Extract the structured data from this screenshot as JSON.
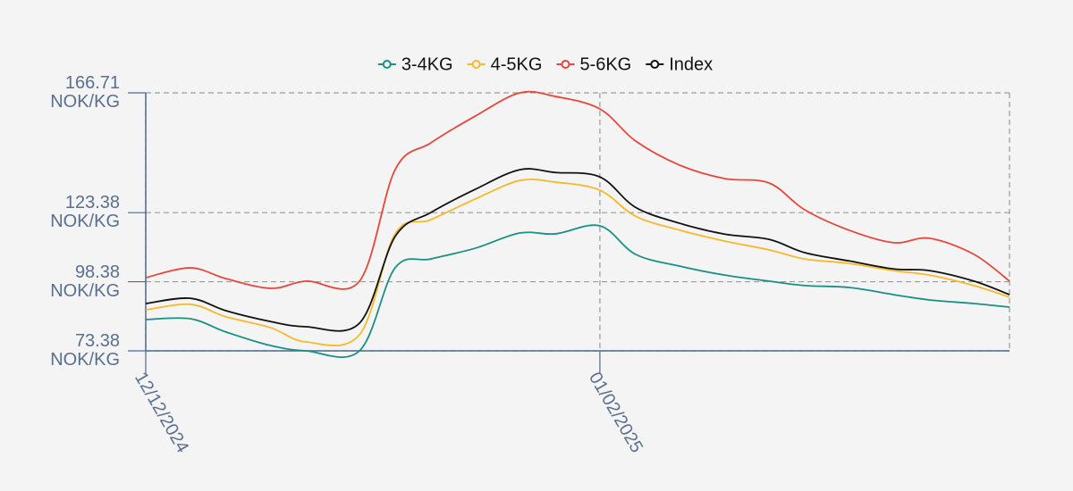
{
  "chart_data": {
    "type": "line",
    "x": [
      "12/12/2024",
      "17/12/2024",
      "21/12/2024",
      "26/12/2024",
      "30/12/2024",
      "05/01/2025",
      "09/01/2025",
      "13/01/2025",
      "18/01/2025",
      "23/01/2025",
      "27/01/2025",
      "01/02/2025",
      "05/02/2025",
      "10/02/2025",
      "15/02/2025",
      "20/02/2025",
      "24/02/2025",
      "01/03/2025",
      "06/03/2025",
      "10/03/2025",
      "15/03/2025",
      "19/03/2025"
    ],
    "series": [
      {
        "name": "3-4KG",
        "color": "#1a9082",
        "values": [
          84.7,
          85.0,
          80.2,
          75.3,
          73.38,
          73.38,
          103.4,
          106.6,
          110.5,
          116.0,
          115.7,
          118.6,
          108.3,
          104.0,
          100.8,
          98.6,
          97.0,
          96.3,
          93.7,
          91.8,
          90.5,
          89.2
        ]
      },
      {
        "name": "4-5KG",
        "color": "#f5b92a",
        "values": [
          88.2,
          90.2,
          85.7,
          81.8,
          76.6,
          79.2,
          115.7,
          120.8,
          128.3,
          135.0,
          134.4,
          131.5,
          122.1,
          117.0,
          113.1,
          109.9,
          106.6,
          105.0,
          102.4,
          100.8,
          97.0,
          92.8
        ]
      },
      {
        "name": "5-6KG",
        "color": "#e8463a",
        "values": [
          99.86,
          103.4,
          99.5,
          96.0,
          98.6,
          98.6,
          138.9,
          148.6,
          158.3,
          166.71,
          165.4,
          160.9,
          149.3,
          140.5,
          135.7,
          134.1,
          124.4,
          117.0,
          112.5,
          114.1,
          108.3,
          98.6
        ]
      },
      {
        "name": "Index",
        "color": "#111111",
        "values": [
          90.5,
          92.4,
          87.9,
          84.0,
          82.1,
          83.4,
          114.7,
          123.4,
          131.8,
          138.9,
          137.9,
          136.3,
          125.3,
          119.5,
          115.6,
          113.7,
          108.9,
          105.9,
          103.0,
          102.4,
          98.6,
          93.7
        ]
      }
    ],
    "xlim": [
      "12/12/2024",
      "19/03/2025"
    ],
    "xticks": [
      "12/12/2024",
      "01/02/2025"
    ],
    "ylim": [
      73.38,
      166.71
    ],
    "yticks": [
      {
        "value": 73.38,
        "label": "73.38\nNOK/KG"
      },
      {
        "value": 98.38,
        "label": "98.38\nNOK/KG"
      },
      {
        "value": 123.38,
        "label": "123.38\nNOK/KG"
      },
      {
        "value": 166.71,
        "label": "166.71\nNOK/KG"
      }
    ],
    "grid": true,
    "legend": "top"
  }
}
